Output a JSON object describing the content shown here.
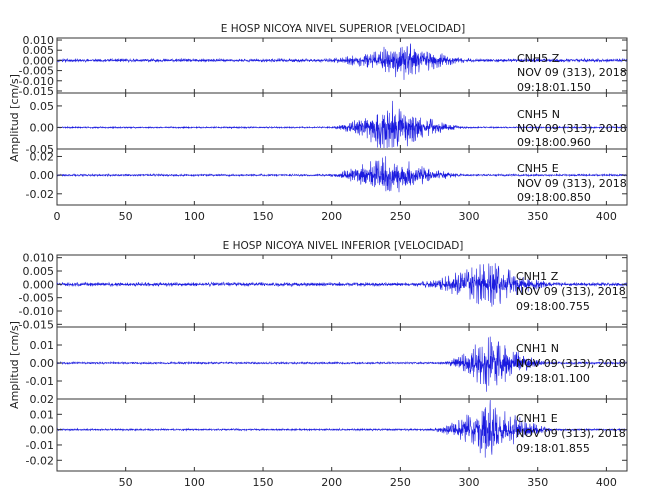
{
  "chart_data": [
    {
      "type": "line",
      "title": "E HOSP NICOYA NIVEL SUPERIOR [VELOCIDAD]",
      "ylabel": "Amplitud [cm/s]",
      "xlim": [
        0,
        415
      ],
      "x_ticks": [
        "0",
        "50",
        "100",
        "150",
        "200",
        "250",
        "300",
        "350",
        "400"
      ],
      "grid": false,
      "line_color": "#1a1adf",
      "traces": [
        {
          "station": "CNH5",
          "component": "Z",
          "date": "NOV 09 (313), 2018",
          "time": "09:18:01.150",
          "ylim": [
            -0.016,
            0.011
          ],
          "y_ticks": [
            "0.010",
            "0.005",
            "0.000",
            "-0.005",
            "-0.010",
            "-0.015"
          ],
          "peak_x": 252,
          "peak_amp": 0.009,
          "noise_amp": 0.0009,
          "onset": 195,
          "end": 305,
          "seed": 11
        },
        {
          "station": "CNH5",
          "component": "N",
          "date": "NOV 09 (313), 2018",
          "time": "09:18:00.960",
          "ylim": [
            -0.05,
            0.08
          ],
          "y_ticks": [
            "0.05",
            "0.00",
            "-0.05"
          ],
          "peak_x": 242,
          "peak_amp": 0.065,
          "noise_amp": 0.002,
          "onset": 198,
          "end": 300,
          "seed": 23
        },
        {
          "station": "CNH5",
          "component": "E",
          "date": "NOV 09 (313), 2018",
          "time": "09:18:00.850",
          "ylim": [
            -0.032,
            0.028
          ],
          "y_ticks": [
            "0.02",
            "0.00",
            "-0.02"
          ],
          "peak_x": 240,
          "peak_amp": 0.024,
          "noise_amp": 0.0012,
          "onset": 195,
          "end": 300,
          "seed": 37
        }
      ]
    },
    {
      "type": "line",
      "title": "E HOSP NICOYA NIVEL INFERIOR [VELOCIDAD]",
      "ylabel": "Amplitud [cm/s]",
      "xlim": [
        0,
        415
      ],
      "x_ticks": [
        "50",
        "100",
        "150",
        "200",
        "250",
        "300",
        "350",
        "400"
      ],
      "grid": false,
      "line_color": "#1a1adf",
      "traces": [
        {
          "station": "CNH1",
          "component": "Z",
          "date": "NOV 09 (313), 2018",
          "time": "09:18:00.755",
          "ylim": [
            -0.016,
            0.011
          ],
          "y_ticks": [
            "0.010",
            "0.005",
            "0.000",
            "-0.005",
            "-0.010",
            "-0.015"
          ],
          "peak_x": 312,
          "peak_amp": 0.0095,
          "noise_amp": 0.0008,
          "onset": 260,
          "end": 365,
          "seed": 51
        },
        {
          "station": "CNH1",
          "component": "N",
          "date": "NOV 09 (313), 2018",
          "time": "09:18:01.100",
          "ylim": [
            -0.02,
            0.02
          ],
          "y_ticks": [
            "0.01",
            "0.00",
            "-0.01"
          ],
          "peak_x": 313,
          "peak_amp": 0.018,
          "noise_amp": 0.0006,
          "onset": 280,
          "end": 360,
          "seed": 67
        },
        {
          "station": "CNH1",
          "component": "E",
          "date": "NOV 09 (313), 2018",
          "time": "09:18:01.855",
          "ylim": [
            -0.027,
            0.02
          ],
          "y_ticks": [
            "0.02",
            "0.01",
            "0.00",
            "-0.01",
            "-0.02"
          ],
          "peak_x": 315,
          "peak_amp": 0.02,
          "noise_amp": 0.0007,
          "onset": 270,
          "end": 365,
          "seed": 79
        }
      ]
    }
  ]
}
